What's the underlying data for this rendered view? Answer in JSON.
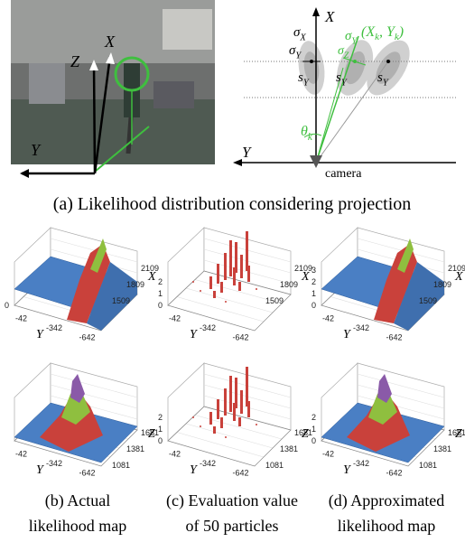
{
  "figure_a": {
    "photo_labels": {
      "x": "X",
      "z": "Z",
      "y": "Y"
    },
    "diagram": {
      "x_axis": "X",
      "y_axis": "Y",
      "sigma_x": {
        "base": "σ",
        "sub": "X"
      },
      "sigma_y": {
        "base": "σ",
        "sub": "Y"
      },
      "s_y": [
        {
          "base": "s",
          "sub": "Y"
        },
        {
          "base": "s",
          "sub": "Y"
        },
        {
          "base": "s",
          "sub": "Y"
        }
      ],
      "sigma_y_green": {
        "base": "σ",
        "sub": "Y"
      },
      "sigma_z": {
        "base": "σ",
        "sub": "Z"
      },
      "position": {
        "open": "(",
        "x": {
          "base": "X",
          "sub": "k"
        },
        "sep": ", ",
        "y": {
          "base": "Y",
          "sub": "k"
        },
        "close": ")"
      },
      "theta": {
        "base": "θ",
        "sub": "k"
      },
      "camera": "camera"
    },
    "caption": "(a) Likelihood distribution considering projection"
  },
  "panels": [
    {
      "kind": "ridge",
      "z_ticks": [
        "0"
      ],
      "y_ticks": [
        "-42",
        "-342",
        "-642"
      ],
      "x_ticks": [
        "2109",
        "1809",
        "1509"
      ],
      "y_label": "Y",
      "x_label": "X"
    },
    {
      "kind": "bars",
      "z_ticks": [
        "2",
        "1",
        "0"
      ],
      "y_ticks": [
        "-42",
        "-342",
        "-642"
      ],
      "x_ticks": [
        "2109",
        "1809",
        "1509"
      ],
      "y_label": "Y",
      "x_label": "X"
    },
    {
      "kind": "ridge",
      "z_ticks": [
        "3",
        "2",
        "1",
        "0"
      ],
      "y_ticks": [
        "-42",
        "-342",
        "-642"
      ],
      "x_ticks": [
        "2109",
        "1809",
        "1509"
      ],
      "y_label": "Y",
      "x_label": "X"
    },
    {
      "kind": "hill",
      "z_ticks": [],
      "y_ticks": [
        "-42",
        "-342",
        "-642"
      ],
      "x_ticks": [
        "1681",
        "1381",
        "1081"
      ],
      "y_label": "Y",
      "x_label": "Z"
    },
    {
      "kind": "bars",
      "z_ticks": [
        "2",
        "1",
        "0"
      ],
      "y_ticks": [
        "-42",
        "-342",
        "-642"
      ],
      "x_ticks": [
        "1681",
        "1381",
        "1081"
      ],
      "y_label": "Y",
      "x_label": "Z"
    },
    {
      "kind": "hill",
      "z_ticks": [
        "2",
        "1",
        "0"
      ],
      "y_ticks": [
        "-42",
        "-342",
        "-642"
      ],
      "x_ticks": [
        "1681",
        "1381",
        "1081"
      ],
      "y_label": "Y",
      "x_label": "Z"
    }
  ],
  "captions": [
    [
      "(b) Actual",
      "likelihood map"
    ],
    [
      "(c) Evaluation value",
      "of 50 particles"
    ],
    [
      "(d) Approximated",
      "likelihood map"
    ]
  ]
}
